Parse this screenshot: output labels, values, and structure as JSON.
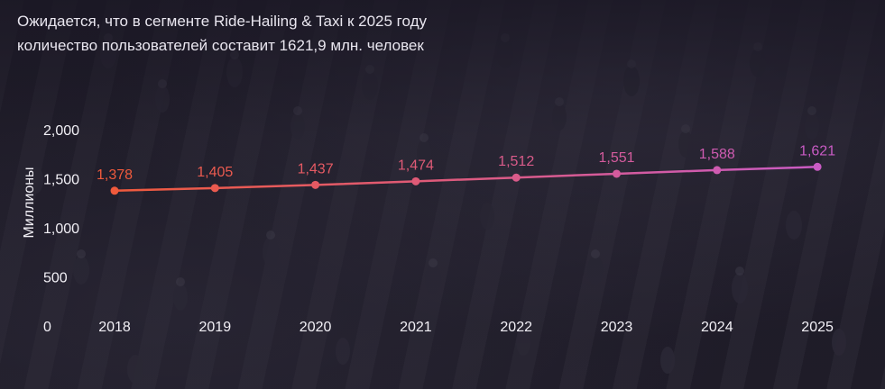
{
  "title_line1": "Ожидается, что в сегменте Ride-Hailing & Taxi к 2025 году",
  "title_line2": "количество пользователей составит 1621,9 млн. человек",
  "colors": {
    "line_start": "#f05a3c",
    "line_end": "#c95bc4",
    "text": "#f2f0f6"
  },
  "chart_data": {
    "type": "line",
    "title": "",
    "xlabel": "",
    "ylabel": "Миллионы",
    "ylim": [
      0,
      2000
    ],
    "yticks": [
      "0",
      "500",
      "1,000",
      "1,500",
      "2,000"
    ],
    "ytick_values": [
      0,
      500,
      1000,
      1500,
      2000
    ],
    "categories": [
      "2018",
      "2019",
      "2020",
      "2021",
      "2022",
      "2023",
      "2024",
      "2025"
    ],
    "values": [
      1378,
      1405,
      1437,
      1474,
      1512,
      1551,
      1588,
      1621
    ],
    "data_labels": [
      "1,378",
      "1,405",
      "1,437",
      "1,474",
      "1,512",
      "1,551",
      "1,588",
      "1,621"
    ],
    "grid": false,
    "legend": "none"
  }
}
